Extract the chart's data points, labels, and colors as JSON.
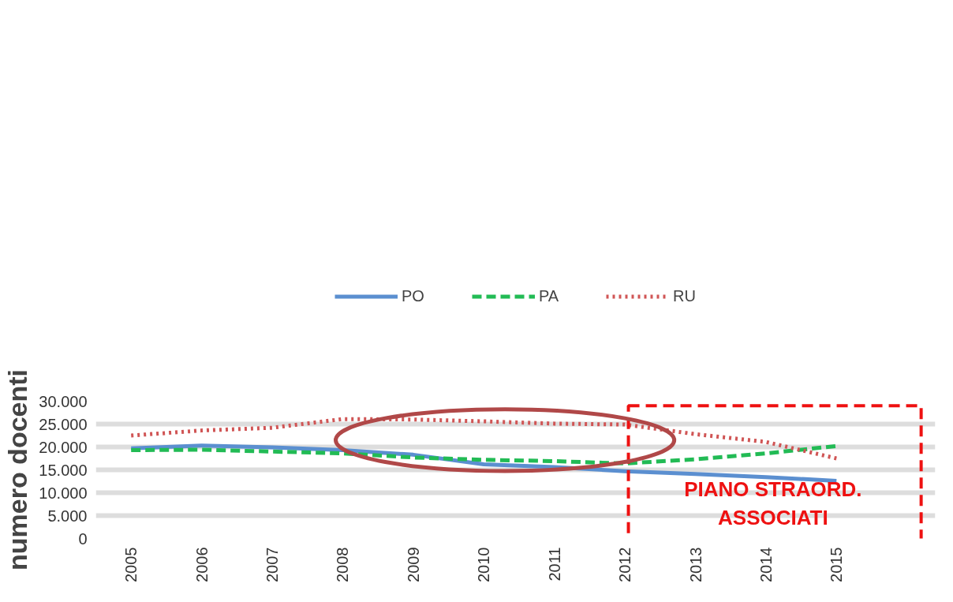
{
  "chart_data": {
    "type": "line",
    "ylabel": "numero docenti",
    "x": [
      2005,
      2006,
      2007,
      2008,
      2009,
      2010,
      2011,
      2012,
      2013,
      2014,
      2015
    ],
    "xlim": [
      2004.5,
      2016.4
    ],
    "xticks": [
      2005,
      2006,
      2007,
      2008,
      2009,
      2010,
      2011,
      2012,
      2013,
      2014,
      2015
    ],
    "ylim": [
      0,
      30000
    ],
    "yticks": [
      {
        "value": 0,
        "label": "0"
      },
      {
        "value": 5000,
        "label": "5.000"
      },
      {
        "value": 10000,
        "label": "10.000"
      },
      {
        "value": 15000,
        "label": "15.000"
      },
      {
        "value": 20000,
        "label": "20.000"
      },
      {
        "value": 25000,
        "label": "25.000"
      },
      {
        "value": 30000,
        "label": "30.000"
      }
    ],
    "series": [
      {
        "name": "PO",
        "color": "#5b8fd0",
        "line_style": "solid",
        "values": [
          19700,
          20300,
          19900,
          19300,
          18300,
          16200,
          15600,
          14700,
          14100,
          13400,
          12600
        ]
      },
      {
        "name": "PA",
        "color": "#22bb55",
        "line_style": "dashed",
        "values": [
          19300,
          19400,
          19000,
          18600,
          17700,
          17200,
          16900,
          16400,
          17300,
          18600,
          20200
        ]
      },
      {
        "name": "RU",
        "color": "#d05555",
        "line_style": "dotted",
        "values": [
          22500,
          23600,
          24200,
          26100,
          26000,
          25600,
          25100,
          24900,
          22800,
          21100,
          17500
        ]
      }
    ],
    "annotations": [
      "PIANO STRAORD.\nASSOCIATI"
    ],
    "grid": "y",
    "legend": "top",
    "marker": "none"
  }
}
